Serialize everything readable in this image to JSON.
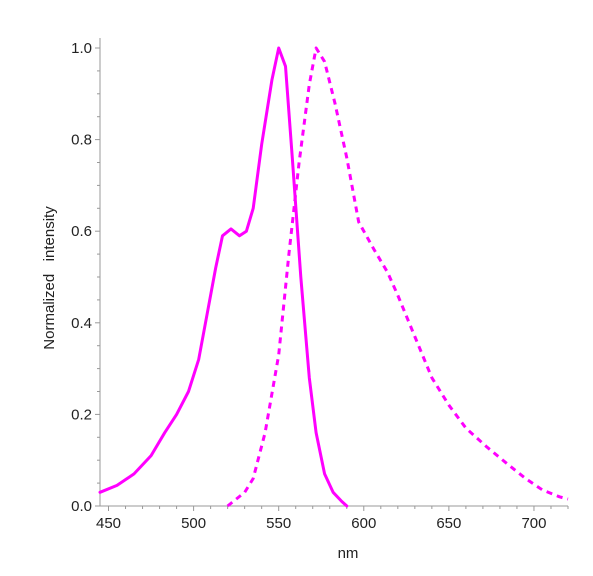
{
  "chart_data": {
    "type": "line",
    "title": "",
    "xlabel": "nm",
    "ylabel": "Normalized   intensity",
    "xlim": [
      445,
      720
    ],
    "ylim": [
      0,
      1.0
    ],
    "x_ticks": [
      450,
      500,
      550,
      600,
      650,
      700
    ],
    "y_ticks": [
      0.0,
      0.2,
      0.4,
      0.6,
      0.8,
      1.0
    ],
    "y_tick_labels": [
      "0.0",
      "0.2",
      "0.4",
      "0.6",
      "0.8",
      "1.0"
    ],
    "grid": false,
    "legend": "none",
    "color": "#ff00ff",
    "series": [
      {
        "style": "solid",
        "points": [
          [
            445,
            0.03
          ],
          [
            455,
            0.045
          ],
          [
            465,
            0.07
          ],
          [
            475,
            0.11
          ],
          [
            483,
            0.16
          ],
          [
            490,
            0.2
          ],
          [
            497,
            0.25
          ],
          [
            503,
            0.32
          ],
          [
            508,
            0.42
          ],
          [
            513,
            0.52
          ],
          [
            517,
            0.59
          ],
          [
            522,
            0.605
          ],
          [
            527,
            0.59
          ],
          [
            531,
            0.6
          ],
          [
            535,
            0.65
          ],
          [
            540,
            0.79
          ],
          [
            546,
            0.93
          ],
          [
            550,
            1.0
          ],
          [
            554,
            0.96
          ],
          [
            558,
            0.76
          ],
          [
            563,
            0.5
          ],
          [
            568,
            0.28
          ],
          [
            572,
            0.16
          ],
          [
            577,
            0.07
          ],
          [
            582,
            0.03
          ],
          [
            587,
            0.01
          ],
          [
            590,
            0.0
          ]
        ]
      },
      {
        "style": "dashed",
        "points": [
          [
            520,
            0.0
          ],
          [
            530,
            0.03
          ],
          [
            535,
            0.06
          ],
          [
            542,
            0.16
          ],
          [
            550,
            0.33
          ],
          [
            556,
            0.55
          ],
          [
            562,
            0.75
          ],
          [
            568,
            0.92
          ],
          [
            572,
            1.0
          ],
          [
            577,
            0.97
          ],
          [
            583,
            0.88
          ],
          [
            590,
            0.76
          ],
          [
            597,
            0.62
          ],
          [
            606,
            0.56
          ],
          [
            614,
            0.51
          ],
          [
            620,
            0.46
          ],
          [
            630,
            0.37
          ],
          [
            640,
            0.28
          ],
          [
            650,
            0.22
          ],
          [
            660,
            0.17
          ],
          [
            672,
            0.13
          ],
          [
            685,
            0.09
          ],
          [
            695,
            0.06
          ],
          [
            705,
            0.035
          ],
          [
            715,
            0.02
          ],
          [
            720,
            0.015
          ]
        ]
      }
    ]
  }
}
